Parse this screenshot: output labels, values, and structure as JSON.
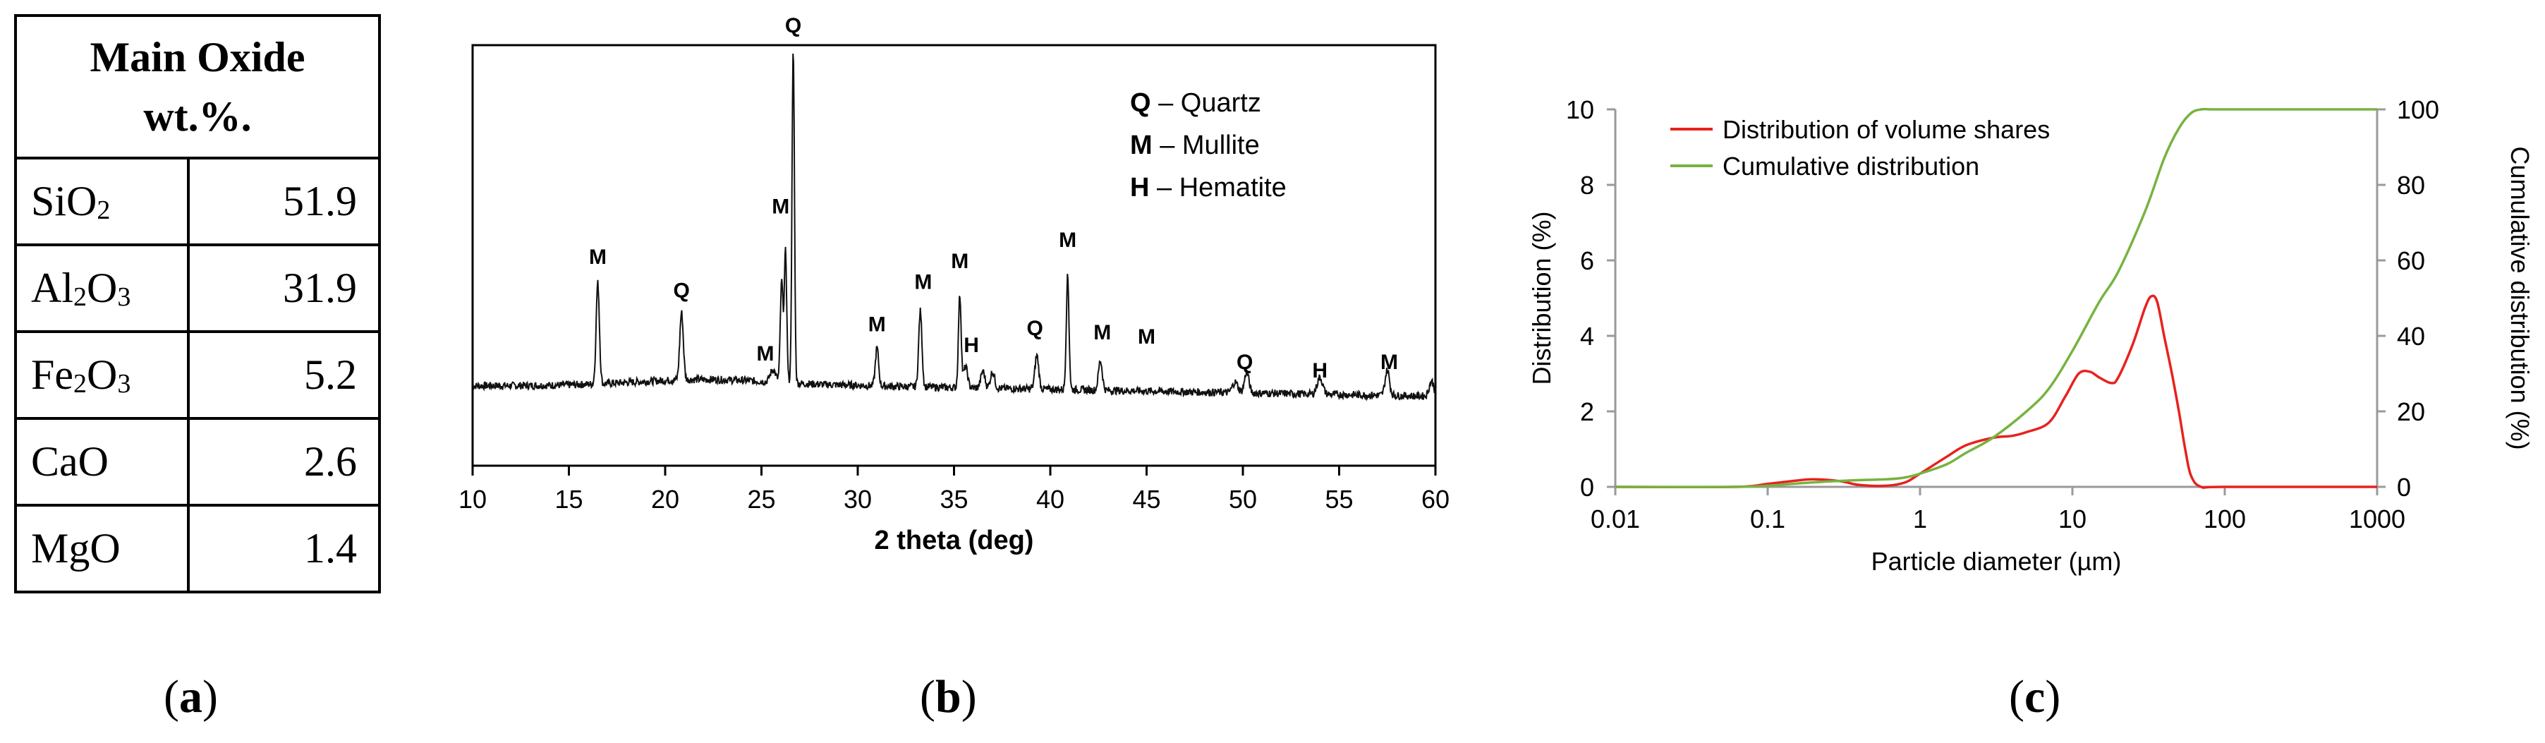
{
  "panel_a": {
    "header_line1": "Main Oxide",
    "header_line2": "wt.%.",
    "rows": [
      {
        "name": "SiO2",
        "base1": "SiO",
        "sub1": "2",
        "base2": "",
        "sub2": "",
        "value": "51.9"
      },
      {
        "name": "Al2O3",
        "base1": "Al",
        "sub1": "2",
        "base2": "O",
        "sub2": "3",
        "value": "31.9"
      },
      {
        "name": "Fe2O3",
        "base1": "Fe",
        "sub1": "2",
        "base2": "O",
        "sub2": "3",
        "value": "5.2"
      },
      {
        "name": "CaO",
        "base1": "CaO",
        "sub1": "",
        "base2": "",
        "sub2": "",
        "value": "2.6"
      },
      {
        "name": "MgO",
        "base1": "MgO",
        "sub1": "",
        "base2": "",
        "sub2": "",
        "value": "1.4"
      }
    ],
    "caption_open": "(",
    "caption_letter": "a",
    "caption_close": ")"
  },
  "panel_b": {
    "caption_open": "(",
    "caption_letter": "b",
    "caption_close": ")"
  },
  "panel_c": {
    "caption_open": "(",
    "caption_letter": "c",
    "caption_close": ")"
  },
  "colors": {
    "red": "#e8211e",
    "green": "#77b340",
    "axis": "#000000",
    "trace": "#111111"
  },
  "chart_data": [
    {
      "id": "xrd",
      "type": "line",
      "title": "",
      "xlabel": "2 theta (deg)",
      "ylabel": "",
      "xlim": [
        10,
        60
      ],
      "ylim": [
        0,
        100
      ],
      "xticks": [
        10,
        15,
        20,
        25,
        30,
        35,
        40,
        45,
        50,
        55,
        60
      ],
      "baseline": 19,
      "noise": 0.9,
      "peaks": [
        {
          "x": 16.5,
          "h": 24,
          "w": 0.12
        },
        {
          "x": 20.85,
          "h": 16,
          "w": 0.13
        },
        {
          "x": 25.6,
          "h": 3,
          "w": 0.2
        },
        {
          "x": 26.05,
          "h": 24,
          "w": 0.1
        },
        {
          "x": 26.25,
          "h": 31,
          "w": 0.09
        },
        {
          "x": 26.65,
          "h": 79,
          "w": 0.09
        },
        {
          "x": 31.0,
          "h": 9,
          "w": 0.12
        },
        {
          "x": 33.25,
          "h": 18,
          "w": 0.12
        },
        {
          "x": 35.3,
          "h": 22,
          "w": 0.1
        },
        {
          "x": 35.6,
          "h": 5,
          "w": 0.15
        },
        {
          "x": 36.5,
          "h": 4,
          "w": 0.15
        },
        {
          "x": 37.0,
          "h": 4,
          "w": 0.15
        },
        {
          "x": 39.3,
          "h": 8,
          "w": 0.14
        },
        {
          "x": 40.9,
          "h": 27,
          "w": 0.1
        },
        {
          "x": 42.6,
          "h": 7,
          "w": 0.14
        },
        {
          "x": 49.6,
          "h": 2.5,
          "w": 0.2
        },
        {
          "x": 50.2,
          "h": 5,
          "w": 0.16
        },
        {
          "x": 54.0,
          "h": 4,
          "w": 0.2
        },
        {
          "x": 57.5,
          "h": 6,
          "w": 0.16
        },
        {
          "x": 59.8,
          "h": 3.5,
          "w": 0.18
        }
      ],
      "peak_labels": [
        {
          "text": "M",
          "x": 16.5,
          "y": 48
        },
        {
          "text": "Q",
          "x": 20.85,
          "y": 40
        },
        {
          "text": "M",
          "x": 25.2,
          "y": 25
        },
        {
          "text": "M",
          "x": 26.0,
          "y": 60
        },
        {
          "text": "Q",
          "x": 26.65,
          "y": 103
        },
        {
          "text": "M",
          "x": 31.0,
          "y": 32
        },
        {
          "text": "M",
          "x": 33.4,
          "y": 42
        },
        {
          "text": "M",
          "x": 35.3,
          "y": 47
        },
        {
          "text": "H",
          "x": 35.9,
          "y": 27
        },
        {
          "text": "Q",
          "x": 39.2,
          "y": 31
        },
        {
          "text": "M",
          "x": 40.9,
          "y": 52
        },
        {
          "text": "M",
          "x": 42.7,
          "y": 30
        },
        {
          "text": "M",
          "x": 45.0,
          "y": 29
        },
        {
          "text": "Q",
          "x": 50.1,
          "y": 23
        },
        {
          "text": "H",
          "x": 54.0,
          "y": 21
        },
        {
          "text": "M",
          "x": 57.6,
          "y": 23
        }
      ],
      "legend": [
        {
          "key": "Q",
          "text": "Quartz"
        },
        {
          "key": "M",
          "text": "Mullite"
        },
        {
          "key": "H",
          "text": "Hematite"
        }
      ],
      "legend_dash": "–",
      "legend_position": "top-right"
    },
    {
      "id": "psd",
      "type": "line",
      "title": "",
      "xscale": "log",
      "xlabel": "Particle diameter (µm)",
      "ylabel": "Distribution  (%)",
      "y2label": "Cumulative distribution (%)",
      "xlim": [
        0.01,
        1000
      ],
      "ylim": [
        0,
        10
      ],
      "y2lim": [
        0,
        100
      ],
      "xticks": [
        0.01,
        0.1,
        1,
        10,
        100,
        1000
      ],
      "xtick_labels": [
        "0.01",
        "0.1",
        "1",
        "10",
        "100",
        "1000"
      ],
      "yticks": [
        0,
        2,
        4,
        6,
        8,
        10
      ],
      "ytick_labels": [
        "0",
        "2",
        "4",
        "6",
        "8",
        "10"
      ],
      "y2ticks": [
        0,
        20,
        40,
        60,
        80,
        100
      ],
      "y2tick_labels": [
        "0",
        "20",
        "40",
        "60",
        "80",
        "100"
      ],
      "legend_position": "top-left",
      "series": [
        {
          "name": "Distribution of volume shares",
          "axis": "left",
          "color": "#e8211e",
          "x": [
            0.01,
            0.06,
            0.1,
            0.15,
            0.2,
            0.3,
            0.4,
            0.6,
            0.8,
            1.0,
            1.5,
            2,
            3,
            4,
            5,
            7,
            9,
            11,
            13,
            15,
            18,
            20,
            25,
            30,
            33,
            36,
            40,
            45,
            50,
            55,
            60,
            70,
            100,
            1000
          ],
          "y": [
            0,
            0,
            0.08,
            0.16,
            0.2,
            0.15,
            0.05,
            0.03,
            0.12,
            0.35,
            0.8,
            1.1,
            1.3,
            1.35,
            1.45,
            1.7,
            2.4,
            3.0,
            3.05,
            2.9,
            2.75,
            2.9,
            3.8,
            4.75,
            5.05,
            4.9,
            4.0,
            3.0,
            2.0,
            1.0,
            0.3,
            0,
            0,
            0
          ]
        },
        {
          "name": "Cumulative distribution",
          "axis": "right",
          "color": "#77b340",
          "x": [
            0.01,
            0.06,
            0.1,
            0.2,
            0.4,
            0.6,
            0.8,
            1,
            1.5,
            2,
            3,
            5,
            7,
            10,
            15,
            20,
            30,
            40,
            50,
            60,
            70,
            80,
            100,
            1000
          ],
          "y": [
            0,
            0,
            0.3,
            1.2,
            1.8,
            2.0,
            2.5,
            3.5,
            6,
            9,
            13,
            20,
            26,
            36,
            49,
            57,
            73,
            87,
            95,
            99,
            100,
            100,
            100,
            100
          ]
        }
      ]
    }
  ]
}
